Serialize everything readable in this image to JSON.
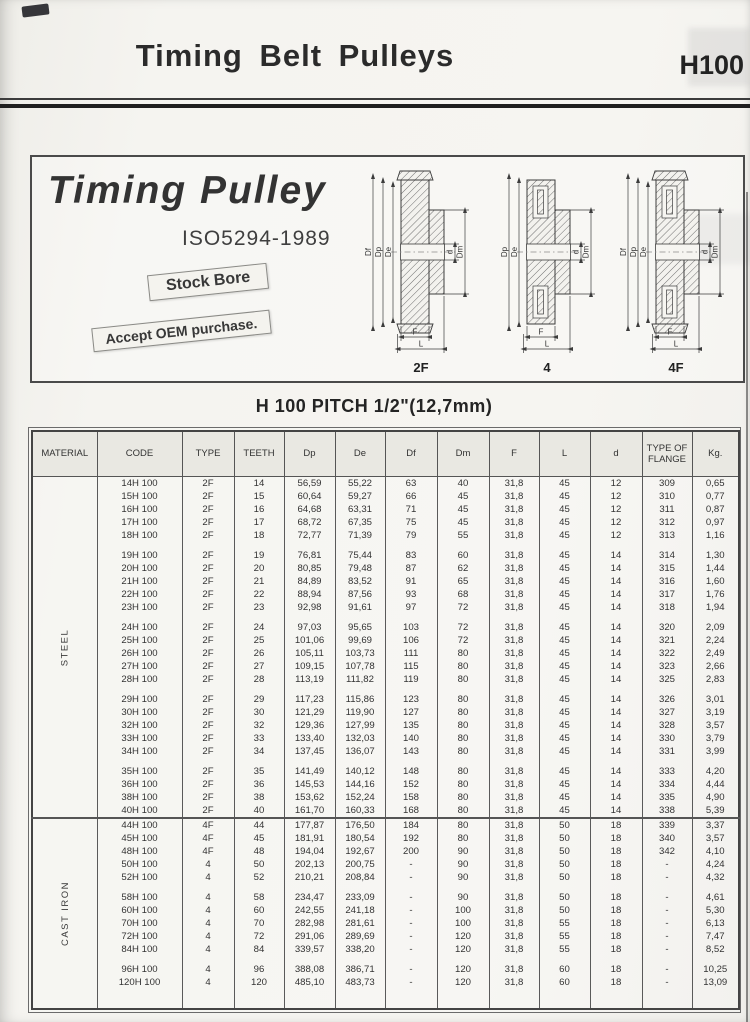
{
  "header": {
    "title": "Timing Belt Pulleys",
    "page_code": "H100"
  },
  "promo": {
    "title": "Timing Pulley",
    "subtitle": "ISO5294-1989",
    "badge_stock": "Stock Bore",
    "badge_oem": "Accept OEM purchase."
  },
  "diagrams": [
    {
      "label": "2F",
      "flanged": true,
      "slots": false,
      "left_dims": [
        "Df",
        "Dp",
        "De"
      ],
      "right_dims": [
        "d",
        "Dm"
      ],
      "bottom_dims": [
        "F",
        "L"
      ]
    },
    {
      "label": "4",
      "flanged": false,
      "slots": true,
      "left_dims": [
        "Dp",
        "De"
      ],
      "right_dims": [
        "d",
        "Dm"
      ],
      "bottom_dims": [
        "F",
        "L"
      ]
    },
    {
      "label": "4F",
      "flanged": true,
      "slots": true,
      "left_dims": [
        "Df",
        "Dp",
        "De"
      ],
      "right_dims": [
        "d",
        "Dm"
      ],
      "bottom_dims": [
        "F",
        "L"
      ]
    }
  ],
  "table": {
    "title": "H 100 PITCH 1/2\"(12,7mm)",
    "columns": [
      "MATERIAL",
      "CODE",
      "TYPE",
      "TEETH",
      "Dp",
      "De",
      "Df",
      "Dm",
      "F",
      "L",
      "d",
      "TYPE OF FLANGE",
      "Kg."
    ],
    "groups": [
      {
        "material": "STEEL",
        "blocks": [
          [
            [
              "14H 100",
              "2F",
              "14",
              "56,59",
              "55,22",
              "63",
              "40",
              "31,8",
              "45",
              "12",
              "309",
              "0,65"
            ],
            [
              "15H 100",
              "2F",
              "15",
              "60,64",
              "59,27",
              "66",
              "45",
              "31,8",
              "45",
              "12",
              "310",
              "0,77"
            ],
            [
              "16H 100",
              "2F",
              "16",
              "64,68",
              "63,31",
              "71",
              "45",
              "31,8",
              "45",
              "12",
              "311",
              "0,87"
            ],
            [
              "17H 100",
              "2F",
              "17",
              "68,72",
              "67,35",
              "75",
              "45",
              "31,8",
              "45",
              "12",
              "312",
              "0,97"
            ],
            [
              "18H 100",
              "2F",
              "18",
              "72,77",
              "71,39",
              "79",
              "55",
              "31,8",
              "45",
              "12",
              "313",
              "1,16"
            ]
          ],
          [
            [
              "19H 100",
              "2F",
              "19",
              "76,81",
              "75,44",
              "83",
              "60",
              "31,8",
              "45",
              "14",
              "314",
              "1,30"
            ],
            [
              "20H 100",
              "2F",
              "20",
              "80,85",
              "79,48",
              "87",
              "62",
              "31,8",
              "45",
              "14",
              "315",
              "1,44"
            ],
            [
              "21H 100",
              "2F",
              "21",
              "84,89",
              "83,52",
              "91",
              "65",
              "31,8",
              "45",
              "14",
              "316",
              "1,60"
            ],
            [
              "22H 100",
              "2F",
              "22",
              "88,94",
              "87,56",
              "93",
              "68",
              "31,8",
              "45",
              "14",
              "317",
              "1,76"
            ],
            [
              "23H 100",
              "2F",
              "23",
              "92,98",
              "91,61",
              "97",
              "72",
              "31,8",
              "45",
              "14",
              "318",
              "1,94"
            ]
          ],
          [
            [
              "24H 100",
              "2F",
              "24",
              "97,03",
              "95,65",
              "103",
              "72",
              "31,8",
              "45",
              "14",
              "320",
              "2,09"
            ],
            [
              "25H 100",
              "2F",
              "25",
              "101,06",
              "99,69",
              "106",
              "72",
              "31,8",
              "45",
              "14",
              "321",
              "2,24"
            ],
            [
              "26H 100",
              "2F",
              "26",
              "105,11",
              "103,73",
              "111",
              "80",
              "31,8",
              "45",
              "14",
              "322",
              "2,49"
            ],
            [
              "27H 100",
              "2F",
              "27",
              "109,15",
              "107,78",
              "115",
              "80",
              "31,8",
              "45",
              "14",
              "323",
              "2,66"
            ],
            [
              "28H 100",
              "2F",
              "28",
              "113,19",
              "111,82",
              "119",
              "80",
              "31,8",
              "45",
              "14",
              "325",
              "2,83"
            ]
          ],
          [
            [
              "29H 100",
              "2F",
              "29",
              "117,23",
              "115,86",
              "123",
              "80",
              "31,8",
              "45",
              "14",
              "326",
              "3,01"
            ],
            [
              "30H 100",
              "2F",
              "30",
              "121,29",
              "119,90",
              "127",
              "80",
              "31,8",
              "45",
              "14",
              "327",
              "3,19"
            ],
            [
              "32H 100",
              "2F",
              "32",
              "129,36",
              "127,99",
              "135",
              "80",
              "31,8",
              "45",
              "14",
              "328",
              "3,57"
            ],
            [
              "33H 100",
              "2F",
              "33",
              "133,40",
              "132,03",
              "140",
              "80",
              "31,8",
              "45",
              "14",
              "330",
              "3,79"
            ],
            [
              "34H 100",
              "2F",
              "34",
              "137,45",
              "136,07",
              "143",
              "80",
              "31,8",
              "45",
              "14",
              "331",
              "3,99"
            ]
          ],
          [
            [
              "35H 100",
              "2F",
              "35",
              "141,49",
              "140,12",
              "148",
              "80",
              "31,8",
              "45",
              "14",
              "333",
              "4,20"
            ],
            [
              "36H 100",
              "2F",
              "36",
              "145,53",
              "144,16",
              "152",
              "80",
              "31,8",
              "45",
              "14",
              "334",
              "4,44"
            ],
            [
              "38H 100",
              "2F",
              "38",
              "153,62",
              "152,24",
              "158",
              "80",
              "31,8",
              "45",
              "14",
              "335",
              "4,90"
            ],
            [
              "40H 100",
              "2F",
              "40",
              "161,70",
              "160,33",
              "168",
              "80",
              "31,8",
              "45",
              "14",
              "338",
              "5,39"
            ]
          ]
        ]
      },
      {
        "material": "CAST IRON",
        "blocks": [
          [
            [
              "44H 100",
              "4F",
              "44",
              "177,87",
              "176,50",
              "184",
              "80",
              "31,8",
              "50",
              "18",
              "339",
              "3,37"
            ],
            [
              "45H 100",
              "4F",
              "45",
              "181,91",
              "180,54",
              "192",
              "80",
              "31,8",
              "50",
              "18",
              "340",
              "3,57"
            ],
            [
              "48H 100",
              "4F",
              "48",
              "194,04",
              "192,67",
              "200",
              "90",
              "31,8",
              "50",
              "18",
              "342",
              "4,10"
            ],
            [
              "50H 100",
              "4",
              "50",
              "202,13",
              "200,75",
              "-",
              "90",
              "31,8",
              "50",
              "18",
              "-",
              "4,24"
            ],
            [
              "52H 100",
              "4",
              "52",
              "210,21",
              "208,84",
              "-",
              "90",
              "31,8",
              "50",
              "18",
              "-",
              "4,32"
            ]
          ],
          [
            [
              "58H 100",
              "4",
              "58",
              "234,47",
              "233,09",
              "-",
              "90",
              "31,8",
              "50",
              "18",
              "-",
              "4,61"
            ],
            [
              "60H 100",
              "4",
              "60",
              "242,55",
              "241,18",
              "-",
              "100",
              "31,8",
              "50",
              "18",
              "-",
              "5,30"
            ],
            [
              "70H 100",
              "4",
              "70",
              "282,98",
              "281,61",
              "-",
              "100",
              "31,8",
              "55",
              "18",
              "-",
              "6,13"
            ],
            [
              "72H 100",
              "4",
              "72",
              "291,06",
              "289,69",
              "-",
              "120",
              "31,8",
              "55",
              "18",
              "-",
              "7,47"
            ],
            [
              "84H 100",
              "4",
              "84",
              "339,57",
              "338,20",
              "-",
              "120",
              "31,8",
              "55",
              "18",
              "-",
              "8,52"
            ]
          ],
          [
            [
              "96H 100",
              "4",
              "96",
              "388,08",
              "386,71",
              "-",
              "120",
              "31,8",
              "60",
              "18",
              "-",
              "10,25"
            ],
            [
              "120H 100",
              "4",
              "120",
              "485,10",
              "483,73",
              "-",
              "120",
              "31,8",
              "60",
              "18",
              "-",
              "13,09"
            ]
          ]
        ]
      }
    ]
  },
  "colors": {
    "paper": "#f5f4f0",
    "ink": "#2d2d2d",
    "table_line": "#555555",
    "header_fill": "#e9e8e2"
  }
}
